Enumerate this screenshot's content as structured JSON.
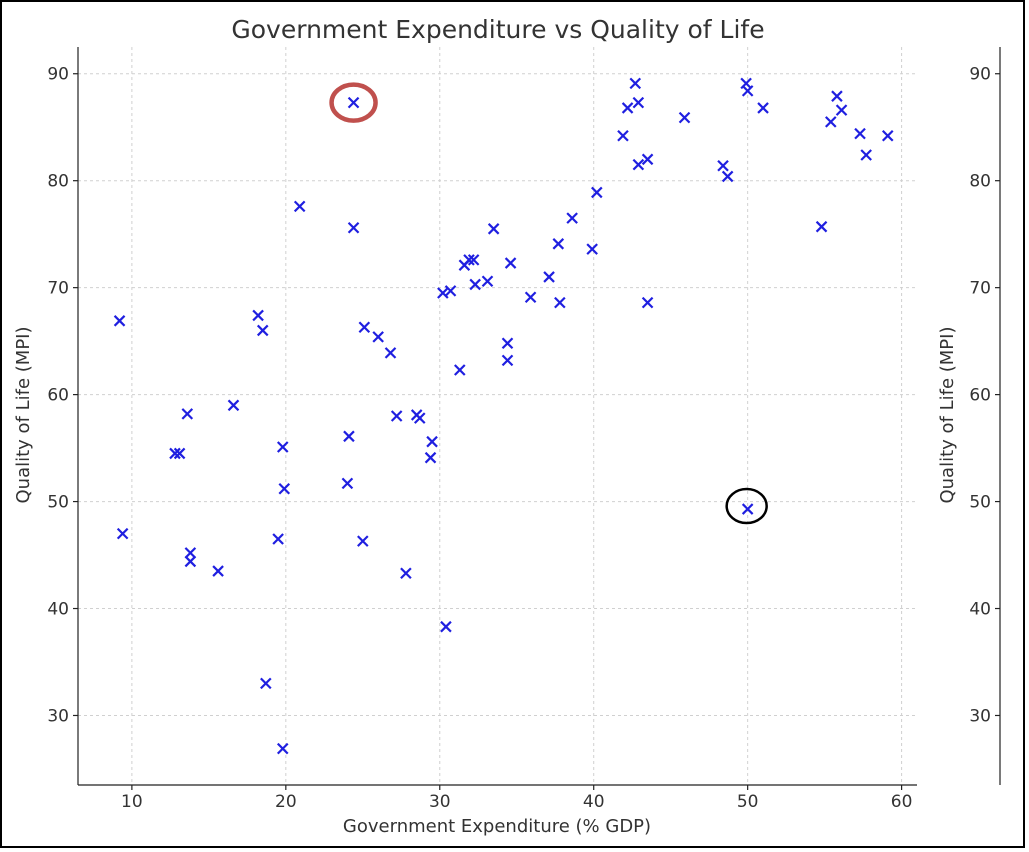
{
  "chart_data": {
    "type": "scatter",
    "title": "Government Expenditure vs Quality of Life",
    "xlabel": "Government Expenditure (% GDP)",
    "ylabel": "Quality of Life (MPI)",
    "xlim": [
      6.5,
      61
    ],
    "ylim": [
      23.5,
      92.5
    ],
    "xticks": [
      10,
      20,
      30,
      40,
      50,
      60
    ],
    "yticks": [
      30,
      40,
      50,
      60,
      70,
      80,
      90
    ],
    "grid": true,
    "marker": "x",
    "color": "#1f1fe0",
    "highlights": [
      {
        "x": 24.4,
        "y": 87.3,
        "color": "#c0504d",
        "shape": "ellipse"
      },
      {
        "x": 50.0,
        "y": 49.3,
        "color": "#000000",
        "shape": "circle"
      }
    ],
    "points": [
      {
        "x": 9.2,
        "y": 66.9
      },
      {
        "x": 9.4,
        "y": 47.0
      },
      {
        "x": 12.8,
        "y": 54.5
      },
      {
        "x": 13.1,
        "y": 54.5
      },
      {
        "x": 13.6,
        "y": 58.2
      },
      {
        "x": 13.8,
        "y": 45.2
      },
      {
        "x": 13.8,
        "y": 44.4
      },
      {
        "x": 15.6,
        "y": 43.5
      },
      {
        "x": 16.6,
        "y": 59.0
      },
      {
        "x": 18.2,
        "y": 67.4
      },
      {
        "x": 18.5,
        "y": 66.0
      },
      {
        "x": 18.7,
        "y": 33.0
      },
      {
        "x": 19.5,
        "y": 46.5
      },
      {
        "x": 19.8,
        "y": 26.9
      },
      {
        "x": 19.8,
        "y": 55.1
      },
      {
        "x": 19.9,
        "y": 51.2
      },
      {
        "x": 20.9,
        "y": 77.6
      },
      {
        "x": 24.0,
        "y": 51.7
      },
      {
        "x": 24.1,
        "y": 56.1
      },
      {
        "x": 24.4,
        "y": 87.3
      },
      {
        "x": 24.4,
        "y": 75.6
      },
      {
        "x": 25.0,
        "y": 46.3
      },
      {
        "x": 25.1,
        "y": 66.3
      },
      {
        "x": 26.0,
        "y": 65.4
      },
      {
        "x": 26.8,
        "y": 63.9
      },
      {
        "x": 27.2,
        "y": 58.0
      },
      {
        "x": 27.8,
        "y": 43.3
      },
      {
        "x": 28.5,
        "y": 58.1
      },
      {
        "x": 28.7,
        "y": 57.8
      },
      {
        "x": 29.4,
        "y": 54.1
      },
      {
        "x": 29.5,
        "y": 55.6
      },
      {
        "x": 30.2,
        "y": 69.5
      },
      {
        "x": 30.4,
        "y": 38.3
      },
      {
        "x": 30.7,
        "y": 69.7
      },
      {
        "x": 31.3,
        "y": 62.3
      },
      {
        "x": 31.6,
        "y": 72.1
      },
      {
        "x": 31.9,
        "y": 72.6
      },
      {
        "x": 32.2,
        "y": 72.6
      },
      {
        "x": 32.3,
        "y": 70.3
      },
      {
        "x": 33.1,
        "y": 70.6
      },
      {
        "x": 33.5,
        "y": 75.5
      },
      {
        "x": 34.4,
        "y": 64.8
      },
      {
        "x": 34.4,
        "y": 63.2
      },
      {
        "x": 34.6,
        "y": 72.3
      },
      {
        "x": 35.9,
        "y": 69.1
      },
      {
        "x": 37.1,
        "y": 71.0
      },
      {
        "x": 37.7,
        "y": 74.1
      },
      {
        "x": 37.8,
        "y": 68.6
      },
      {
        "x": 38.6,
        "y": 76.5
      },
      {
        "x": 39.9,
        "y": 73.6
      },
      {
        "x": 40.2,
        "y": 78.9
      },
      {
        "x": 41.9,
        "y": 84.2
      },
      {
        "x": 42.2,
        "y": 86.8
      },
      {
        "x": 42.7,
        "y": 89.1
      },
      {
        "x": 42.9,
        "y": 87.3
      },
      {
        "x": 42.9,
        "y": 81.5
      },
      {
        "x": 43.5,
        "y": 82.0
      },
      {
        "x": 43.5,
        "y": 68.6
      },
      {
        "x": 45.9,
        "y": 85.9
      },
      {
        "x": 48.4,
        "y": 81.4
      },
      {
        "x": 48.7,
        "y": 80.4
      },
      {
        "x": 49.9,
        "y": 89.1
      },
      {
        "x": 50.0,
        "y": 88.4
      },
      {
        "x": 50.0,
        "y": 49.3
      },
      {
        "x": 51.0,
        "y": 86.8
      },
      {
        "x": 54.8,
        "y": 75.7
      },
      {
        "x": 55.4,
        "y": 85.5
      },
      {
        "x": 55.8,
        "y": 87.9
      },
      {
        "x": 56.1,
        "y": 86.6
      },
      {
        "x": 57.3,
        "y": 84.4
      },
      {
        "x": 57.7,
        "y": 82.4
      },
      {
        "x": 59.1,
        "y": 84.2
      }
    ]
  },
  "side_panel": {
    "ylabel": "Quality of Life (MPI)",
    "yticks": [
      30,
      40,
      50,
      60,
      70,
      80,
      90
    ]
  }
}
